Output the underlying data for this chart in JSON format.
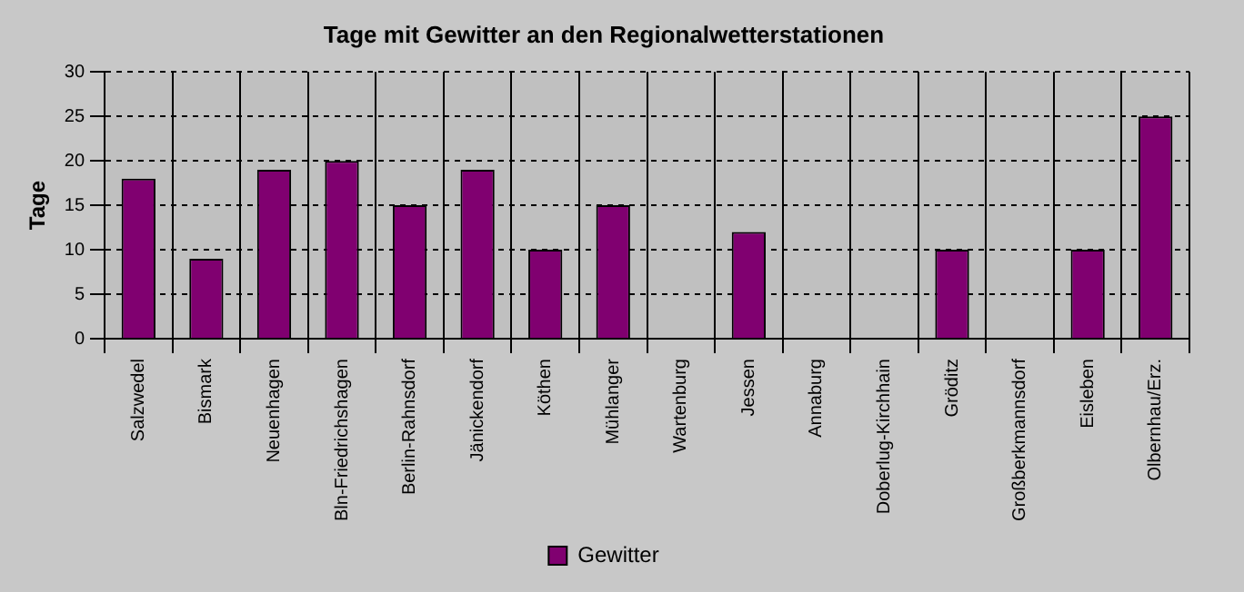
{
  "chart_data": {
    "type": "bar",
    "title": "Tage mit Gewitter an den Regionalwetterstationen",
    "ylabel": "Tage",
    "categories": [
      "Salzwedel",
      "Bismark",
      "Neuenhagen",
      "Bln-Friedrichshagen",
      "Berlin-Rahnsdorf",
      "Jänickendorf",
      "Köthen",
      "Mühlanger",
      "Wartenburg",
      "Jessen",
      "Annaburg",
      "Doberlug-Kirchhain",
      "Gröditz",
      "Großberkmannsdorf",
      "Eisleben",
      "Olbernhau/Erz."
    ],
    "series": [
      {
        "name": "Gewitter",
        "color": "#800070",
        "values": [
          18,
          9,
          19,
          20,
          15,
          19,
          10,
          15,
          0,
          12,
          0,
          0,
          10,
          0,
          10,
          25
        ]
      }
    ],
    "ylim": [
      0,
      30
    ],
    "yticks": [
      0,
      5,
      10,
      15,
      20,
      25,
      30
    ],
    "grid": true,
    "legend": "bottom"
  }
}
